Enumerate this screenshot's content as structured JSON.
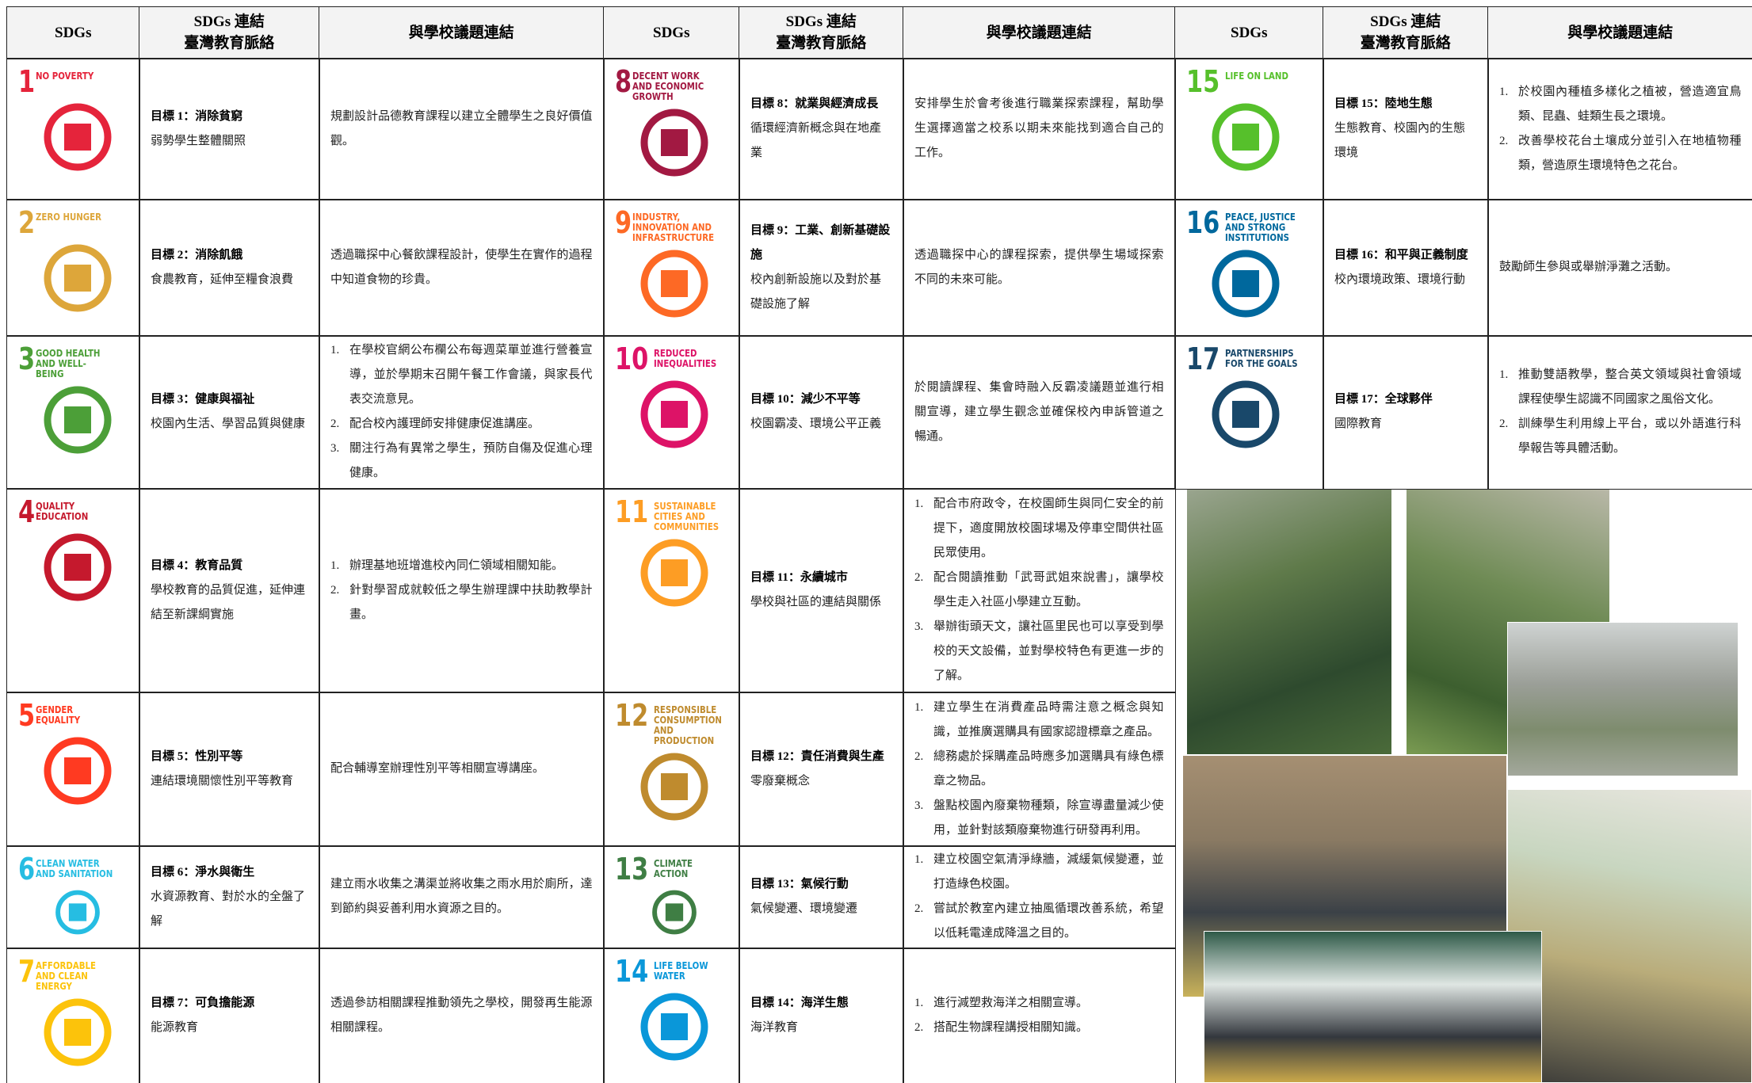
{
  "headers": [
    {
      "sdgs": "SDGs",
      "context": [
        "SDGs 連結",
        "臺灣教育脈絡"
      ],
      "issues": "與學校議題連結"
    },
    {
      "sdgs": "SDGs",
      "context": [
        "SDGs 連結",
        "臺灣教育脈絡"
      ],
      "issues": "與學校議題連結"
    },
    {
      "sdgs": "SDGs",
      "context": [
        "SDGs 連結",
        "臺灣教育脈絡"
      ],
      "issues": "與學校議題連結"
    }
  ],
  "goals": [
    {
      "number": "1",
      "label": "NO POVERTY",
      "color": "#e5243b",
      "target": "目標 1：消除貧窮",
      "context": "弱勢學生整體關照",
      "issues": "規劃設計品德教育課程以建立全體學生之良好價值觀。"
    },
    {
      "number": "2",
      "label": "ZERO HUNGER",
      "color": "#dda63a",
      "target": "目標 2：消除飢餓",
      "context": "食農教育，延伸至糧食浪費",
      "issues": "透過職探中心餐飲課程設計，使學生在實作的過程中知道食物的珍貴。"
    },
    {
      "number": "3",
      "label": "GOOD HEALTH AND WELL-BEING",
      "color": "#4c9f38",
      "target": "目標 3：健康與福祉",
      "context": "校園內生活、學習品質與健康",
      "issues": [
        {
          "marker": "1.",
          "text": "在學校官網公布欄公布每週菜單並進行營養宣導，並於學期末召開午餐工作會議，與家長代表交流意見。"
        },
        {
          "marker": "2.",
          "text": "配合校內護理師安排健康促進講座。"
        },
        {
          "marker": "3.",
          "text": "關注行為有異常之學生，預防自傷及促進心理健康。"
        }
      ]
    },
    {
      "number": "4",
      "label": "QUALITY EDUCATION",
      "color": "#c5192d",
      "target": "目標 4：教育品質",
      "context": "學校教育的品質促進，延伸連結至新課綱實施",
      "issues": [
        {
          "marker": "1.",
          "text": "辦理基地班增進校內同仁領域相關知能。"
        },
        {
          "marker": "2.",
          "text": "針對學習成就較低之學生辦理課中扶助教學計畫。"
        }
      ]
    },
    {
      "number": "5",
      "label": "GENDER EQUALITY",
      "color": "#ff3a21",
      "target": "目標 5：性別平等",
      "context": "連結環境關懷性別平等教育",
      "issues": "配合輔導室辦理性別平等相關宣導講座。"
    },
    {
      "number": "6",
      "label": "CLEAN WATER AND SANITATION",
      "color": "#26bde2",
      "target": "目標 6：淨水與衛生",
      "context": "水資源教育、對於水的全盤了解",
      "issues": "建立雨水收集之溝渠並將收集之雨水用於廁所，達到節約與妥善利用水資源之目的。"
    },
    {
      "number": "7",
      "label": "AFFORDABLE AND CLEAN ENERGY",
      "color": "#fcc30b",
      "target": "目標 7：可負擔能源",
      "context": "能源教育",
      "issues": "透過參訪相關課程推動領先之學校，開發再生能源相關課程。"
    },
    {
      "number": "8",
      "label": "DECENT WORK AND ECONOMIC GROWTH",
      "color": "#a21942",
      "target": "目標 8：就業與經濟成長",
      "context": "循環經濟新概念與在地產業",
      "issues": "安排學生於會考後進行職業探索課程，幫助學生選擇適當之校系以期未來能找到適合自己的工作。"
    },
    {
      "number": "9",
      "label": "INDUSTRY, INNOVATION AND INFRASTRUCTURE",
      "color": "#fd6925",
      "target": "目標 9：工業、創新基礎設施",
      "context": "校內創新設施以及對於基礎設施了解",
      "issues": "透過職探中心的課程探索，提供學生場域探索不同的未來可能。"
    },
    {
      "number": "10",
      "label": "REDUCED INEQUALITIES",
      "color": "#dd1367",
      "target": "目標 10：減少不平等",
      "context": "校園霸凌、環境公平正義",
      "issues": "於閱讀課程、集會時融入反霸凌議題並進行相關宣導，建立學生觀念並確保校內申訴管道之暢通。"
    },
    {
      "number": "11",
      "label": "SUSTAINABLE CITIES AND COMMUNITIES",
      "color": "#fd9d24",
      "target": "目標 11：永續城市",
      "context": "學校與社區的連結與關係",
      "issues": [
        {
          "marker": "1.",
          "text": "配合市府政令，在校園師生與同仁安全的前提下，適度開放校園球場及停車空間供社區民眾使用。"
        },
        {
          "marker": "2.",
          "text": "配合閱讀推動「武哥武姐來說書」，讓學校學生走入社區小學建立互動。"
        },
        {
          "marker": "3.",
          "text": "舉辦街頭天文，讓社區里民也可以享受到學校的天文設備，並對學校特色有更進一步的了解。"
        }
      ]
    },
    {
      "number": "12",
      "label": "RESPONSIBLE CONSUMPTION AND PRODUCTION",
      "color": "#bf8b2e",
      "target": "目標 12：責任消費與生產",
      "context": "零廢棄概念",
      "issues": [
        {
          "marker": "1.",
          "text": "建立學生在消費產品時需注意之概念與知識，並推廣選購具有國家認證標章之產品。"
        },
        {
          "marker": "2.",
          "text": "總務處於採購產品時應多加選購具有綠色標章之物品。"
        },
        {
          "marker": "3.",
          "text": "盤點校園內廢棄物種類，除宣導盡量減少使用，並針對該類廢棄物進行研發再利用。"
        }
      ]
    },
    {
      "number": "13",
      "label": "CLIMATE ACTION",
      "color": "#3f7e44",
      "target": "目標 13：氣候行動",
      "context": "氣候變遷、環境變遷",
      "issues": [
        {
          "marker": "1.",
          "text": "建立校園空氣清淨綠牆，減緩氣候變遷，並打造綠色校園。"
        },
        {
          "marker": "2.",
          "text": "嘗試於教室內建立抽風循環改善系統，希望以低耗電達成降溫之目的。"
        }
      ]
    },
    {
      "number": "14",
      "label": "LIFE BELOW WATER",
      "color": "#0a97d9",
      "target": "目標 14：海洋生態",
      "context": "海洋教育",
      "issues": [
        {
          "marker": "1.",
          "text": "進行減塑救海洋之相關宣導。"
        },
        {
          "marker": "2.",
          "text": "搭配生物課程講授相關知識。"
        }
      ]
    },
    {
      "number": "15",
      "label": "LIFE ON LAND",
      "color": "#56c02b",
      "target": "目標 15：陸地生態",
      "context": "生態教育、校園內的生態環境",
      "issues": [
        {
          "marker": "1.",
          "text": "於校園內種植多樣化之植被，營造適宜鳥類、昆蟲、蛙類生長之環境。"
        },
        {
          "marker": "2.",
          "text": "改善學校花台土壤成分並引入在地植物種類，營造原生環境特色之花台。"
        }
      ]
    },
    {
      "number": "16",
      "label": "PEACE, JUSTICE AND STRONG INSTITUTIONS",
      "color": "#00689d",
      "target": "目標 16：和平與正義制度",
      "context": "校內環境政策、環境行動",
      "issues": "鼓勵師生參與或舉辦淨灘之活動。"
    },
    {
      "number": "17",
      "label": "PARTNERSHIPS FOR THE GOALS",
      "color": "#19486a",
      "target": "目標 17：全球夥伴",
      "context": "國際教育",
      "issues": [
        {
          "marker": "1.",
          "text": "推動雙語教學，整合英文領域與社會領域課程使學生認識不同國家之風俗文化。"
        },
        {
          "marker": "2.",
          "text": "訓練學生利用線上平台，或以外語進行科學報告等具體活動。"
        }
      ]
    }
  ]
}
